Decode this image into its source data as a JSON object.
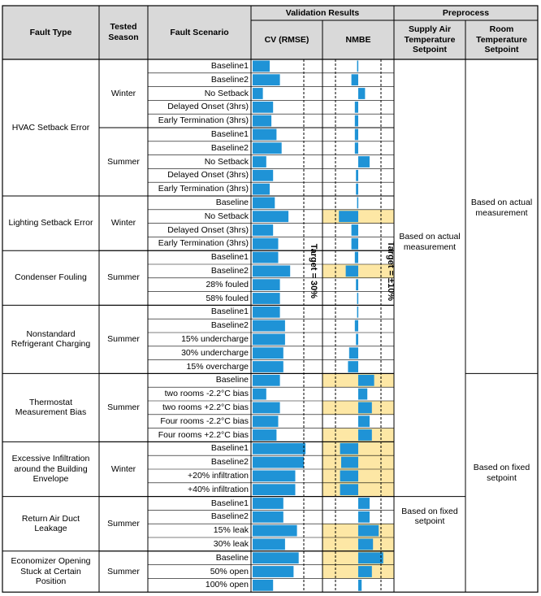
{
  "headers": {
    "fault_type": "Fault Type",
    "tested_season": "Tested Season",
    "fault_scenario": "Fault Scenario",
    "validation_results": "Validation Results",
    "cv": "CV (RMSE)",
    "nmbe": "NMBE",
    "preprocess": "Preprocess",
    "supply_air": "Supply Air Temperature Setpoint",
    "room_temp": "Room Temperature Setpoint"
  },
  "colors": {
    "bar": "#1f93d6",
    "highlight": "#fde7a5",
    "header_bg": "#d9d9d9",
    "grid": "#000000"
  },
  "chart_data": {
    "type": "bar",
    "title": "Validation Results",
    "series": [
      {
        "name": "CV (RMSE)",
        "target_label": "Target = 30%",
        "target": 30,
        "xlim": [
          0,
          40
        ]
      },
      {
        "name": "NMBE",
        "target_label": "Target = ±10%",
        "target": 10,
        "xlim": [
          -15,
          15
        ]
      }
    ],
    "rows": [
      {
        "scenario": "Baseline1",
        "cv": 10,
        "nmbe": -0.5,
        "highlight": false
      },
      {
        "scenario": "Baseline2",
        "cv": 16,
        "nmbe": -3,
        "highlight": false
      },
      {
        "scenario": "No Setback",
        "cv": 6,
        "nmbe": 3,
        "highlight": false
      },
      {
        "scenario": "Delayed Onset (3hrs)",
        "cv": 12,
        "nmbe": -1.5,
        "highlight": false
      },
      {
        "scenario": "Early Termination (3hrs)",
        "cv": 11,
        "nmbe": -1.5,
        "highlight": false
      },
      {
        "scenario": "Baseline1",
        "cv": 14,
        "nmbe": -1.5,
        "highlight": false
      },
      {
        "scenario": "Baseline2",
        "cv": 17,
        "nmbe": -1.5,
        "highlight": false
      },
      {
        "scenario": "No Setback",
        "cv": 8,
        "nmbe": 5,
        "highlight": false
      },
      {
        "scenario": "Delayed Onset (3hrs)",
        "cv": 12,
        "nmbe": -1,
        "highlight": false
      },
      {
        "scenario": "Early Termination (3hrs)",
        "cv": 10,
        "nmbe": -1,
        "highlight": false
      },
      {
        "scenario": "Baseline",
        "cv": 13,
        "nmbe": -0.5,
        "highlight": false
      },
      {
        "scenario": "No Setback",
        "cv": 21,
        "nmbe": -8.5,
        "highlight": true
      },
      {
        "scenario": "Delayed Onset (3hrs)",
        "cv": 12,
        "nmbe": -3,
        "highlight": false
      },
      {
        "scenario": "Early Termination (3hrs)",
        "cv": 15,
        "nmbe": -3,
        "highlight": false
      },
      {
        "scenario": "Baseline1",
        "cv": 15,
        "nmbe": -1.5,
        "highlight": false
      },
      {
        "scenario": "Baseline2",
        "cv": 22,
        "nmbe": -5.5,
        "highlight": true
      },
      {
        "scenario": "28% fouled",
        "cv": 16,
        "nmbe": -1,
        "highlight": false
      },
      {
        "scenario": "58% fouled",
        "cv": 16,
        "nmbe": -0.5,
        "highlight": false
      },
      {
        "scenario": "Baseline1",
        "cv": 16,
        "nmbe": -0.5,
        "highlight": false
      },
      {
        "scenario": "Baseline2",
        "cv": 19,
        "nmbe": -1.5,
        "highlight": false
      },
      {
        "scenario": "15% undercharge",
        "cv": 19,
        "nmbe": -1,
        "highlight": false
      },
      {
        "scenario": "30% undercharge",
        "cv": 18,
        "nmbe": -4,
        "highlight": false
      },
      {
        "scenario": "15% overcharge",
        "cv": 18,
        "nmbe": -4.5,
        "highlight": false
      },
      {
        "scenario": "Baseline",
        "cv": 16,
        "nmbe": 7,
        "highlight": true
      },
      {
        "scenario": "two rooms -2.2°C bias",
        "cv": 8,
        "nmbe": 4,
        "highlight": false
      },
      {
        "scenario": "two rooms +2.2°C bias",
        "cv": 16,
        "nmbe": 6,
        "highlight": true
      },
      {
        "scenario": "Four rooms -2.2°C bias",
        "cv": 15,
        "nmbe": 5,
        "highlight": false
      },
      {
        "scenario": "Four rooms +2.2°C bias",
        "cv": 14,
        "nmbe": 6,
        "highlight": true
      },
      {
        "scenario": "Baseline1",
        "cv": 31,
        "nmbe": -8,
        "highlight": true
      },
      {
        "scenario": "Baseline2",
        "cv": 30,
        "nmbe": -7.5,
        "highlight": true
      },
      {
        "scenario": "+20% infiltration",
        "cv": 25,
        "nmbe": -8,
        "highlight": true
      },
      {
        "scenario": "+40% infiltration",
        "cv": 25,
        "nmbe": -8,
        "highlight": true
      },
      {
        "scenario": "Baseline1",
        "cv": 18,
        "nmbe": 5,
        "highlight": false
      },
      {
        "scenario": "Baseline2",
        "cv": 18,
        "nmbe": 5,
        "highlight": false
      },
      {
        "scenario": "15% leak",
        "cv": 26,
        "nmbe": 9,
        "highlight": true
      },
      {
        "scenario": "30% leak",
        "cv": 19,
        "nmbe": 6.5,
        "highlight": true
      },
      {
        "scenario": "Baseline",
        "cv": 27,
        "nmbe": 11,
        "highlight": true
      },
      {
        "scenario": "50% open",
        "cv": 24,
        "nmbe": 6,
        "highlight": true
      },
      {
        "scenario": "100% open",
        "cv": 12,
        "nmbe": 1.5,
        "highlight": false
      }
    ],
    "fault_groups": [
      {
        "label": "HVAC Setback Error",
        "start": 0,
        "end": 9
      },
      {
        "label": "Lighting Setback Error",
        "start": 10,
        "end": 13
      },
      {
        "label": "Condenser Fouling",
        "start": 14,
        "end": 17
      },
      {
        "label": "Nonstandard Refrigerant Charging",
        "start": 18,
        "end": 22
      },
      {
        "label": "Thermostat Measurement Bias",
        "start": 23,
        "end": 27
      },
      {
        "label": "Excessive Infiltration around the Building Envelope",
        "start": 28,
        "end": 31
      },
      {
        "label": "Return Air Duct Leakage",
        "start": 32,
        "end": 35
      },
      {
        "label": "Economizer Opening Stuck at Certain Position",
        "start": 36,
        "end": 38
      }
    ],
    "season_groups": [
      {
        "label": "Winter",
        "start": 0,
        "end": 4
      },
      {
        "label": "Summer",
        "start": 5,
        "end": 9
      },
      {
        "label": "Winter",
        "start": 10,
        "end": 13
      },
      {
        "label": "Summer",
        "start": 14,
        "end": 17
      },
      {
        "label": "Summer",
        "start": 18,
        "end": 22
      },
      {
        "label": "Summer",
        "start": 23,
        "end": 27
      },
      {
        "label": "Winter",
        "start": 28,
        "end": 31
      },
      {
        "label": "Summer",
        "start": 32,
        "end": 35
      },
      {
        "label": "Summer",
        "start": 36,
        "end": 38
      }
    ],
    "supply_groups": [
      {
        "label": "Based on actual measurement",
        "start": 0,
        "end": 31
      },
      {
        "label": "Based on fixed setpoint",
        "start": 32,
        "end": 38
      }
    ],
    "room_groups": [
      {
        "label": "Based on actual measurement",
        "start": 0,
        "end": 22
      },
      {
        "label": "Based on fixed setpoint",
        "start": 23,
        "end": 38
      }
    ]
  }
}
